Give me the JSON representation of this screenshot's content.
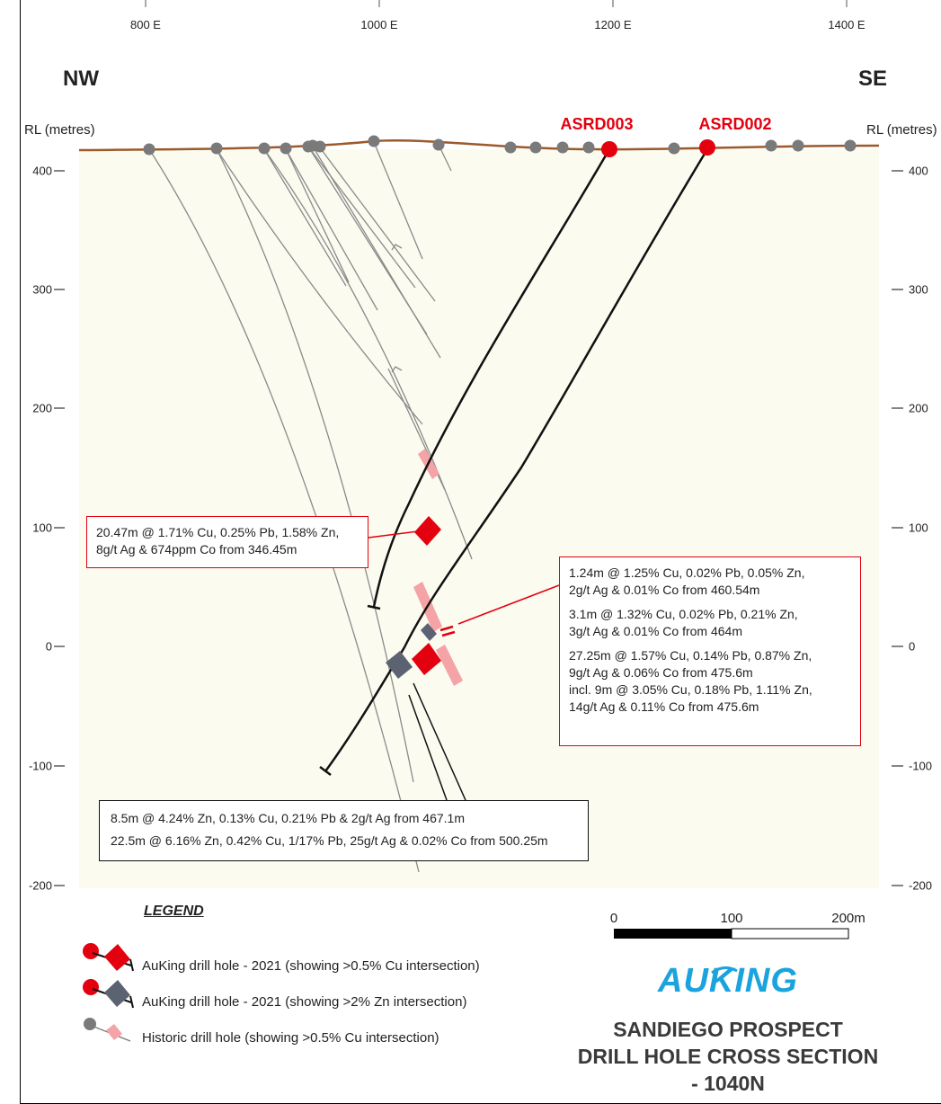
{
  "header": {
    "x_ticks": [
      "800 E",
      "1000 E",
      "1200 E",
      "1400 E"
    ],
    "west_label": "NW",
    "east_label": "SE",
    "rl_left": "RL (metres)",
    "rl_right": "RL (metres)"
  },
  "y_ticks_left": [
    "400",
    "300",
    "200",
    "100",
    "0",
    "-100",
    "-200"
  ],
  "y_ticks_right": [
    "400",
    "300",
    "200",
    "100",
    "0",
    "-100",
    "-200"
  ],
  "drill_holes": {
    "asrd003": "ASRD003",
    "asrd002": "ASRD002"
  },
  "callouts": {
    "asrd003_int": [
      "20.47m @ 1.71% Cu, 0.25% Pb, 1.58% Zn,",
      "8g/t Ag & 674ppm Co from 346.45m"
    ],
    "asrd002_int1": [
      "1.24m @ 1.25% Cu, 0.02% Pb, 0.05% Zn,",
      "2g/t Ag & 0.01% Co from 460.54m"
    ],
    "asrd002_int2": [
      "3.1m @ 1.32% Cu, 0.02% Pb, 0.21% Zn,",
      "3g/t Ag & 0.01% Co from 464m"
    ],
    "asrd002_int3": [
      "27.25m @ 1.57% Cu, 0.14% Pb, 0.87% Zn,",
      "9g/t Ag & 0.06% Co from 475.6m",
      "incl. 9m @ 3.05% Cu, 0.18% Pb, 1.11% Zn,",
      "14g/t Ag & 0.11% Co from 475.6m"
    ],
    "zinc": [
      "8.5m @ 4.24% Zn, 0.13% Cu, 0.21% Pb & 2g/t Ag from 467.1m",
      "22.5m @ 6.16% Zn, 0.42% Cu, 1/17% Pb, 25g/t Ag & 0.02% Co from 500.25m"
    ]
  },
  "legend": {
    "title": "LEGEND",
    "items": [
      "AuKing drill hole - 2021 (showing >0.5% Cu intersection)",
      "AuKing drill hole - 2021 (showing >2% Zn intersection)",
      "Historic drill hole (showing >0.5% Cu intersection)"
    ]
  },
  "scale_bar": {
    "labels": [
      "0",
      "100",
      "200m"
    ]
  },
  "brand": "AUKING",
  "title": {
    "line1": "SANDIEGO PROSPECT",
    "line2": "DRILL HOLE CROSS SECTION",
    "line3": "- 1040N"
  },
  "colors": {
    "cu_intersection": "#e3000f",
    "zn_intersection": "#5b6272",
    "historic_cu": "#f4a3a6",
    "historic_collar": "#7a7a7a",
    "topography": "#9c5a2c",
    "section_bg": "#fbfbf0",
    "brand": "#1aa3dd"
  }
}
